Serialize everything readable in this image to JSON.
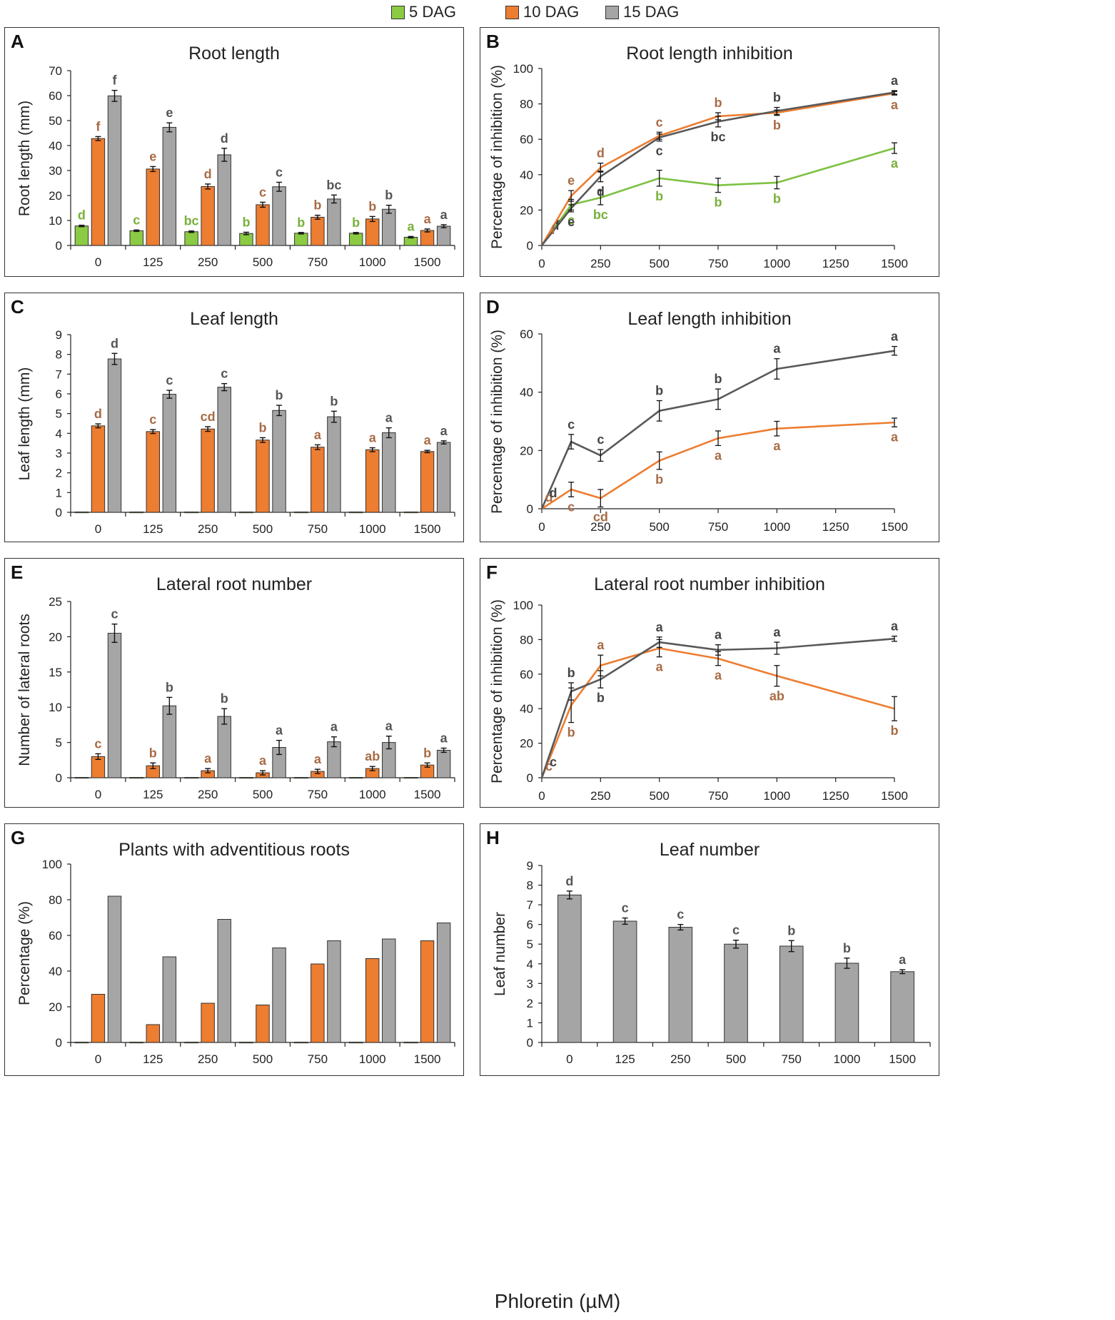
{
  "legend": [
    {
      "label": "5 DAG",
      "color": "#8BCB43"
    },
    {
      "label": "10 DAG",
      "color": "#ED7D31"
    },
    {
      "label": "15 DAG",
      "color": "#A5A5A5"
    }
  ],
  "x_axis_label": "Phloretin (µM)",
  "chart_data": [
    {
      "id": "A",
      "type": "bar",
      "title": "Root length",
      "ylabel": "Root length (mm)",
      "ylim": [
        0,
        70
      ],
      "yticks": [
        0,
        10,
        20,
        30,
        40,
        50,
        60,
        70
      ],
      "categories": [
        "0",
        "125",
        "250",
        "500",
        "750",
        "1000",
        "1500"
      ],
      "series": [
        {
          "name": "5 DAG",
          "color": "#8BCB43",
          "values": [
            7.8,
            5.9,
            5.5,
            4.8,
            4.9,
            4.9,
            3.3
          ],
          "errors": [
            0.3,
            0.3,
            0.3,
            0.5,
            0.3,
            0.3,
            0.3
          ],
          "letters": [
            "d",
            "c",
            "bc",
            "b",
            "b",
            "b",
            "a"
          ],
          "letter_color": "#78B13A"
        },
        {
          "name": "10 DAG",
          "color": "#ED7D31",
          "values": [
            42.8,
            30.6,
            23.6,
            16.3,
            11.3,
            10.6,
            6.0
          ],
          "errors": [
            0.8,
            1.0,
            1.0,
            1.0,
            0.8,
            1.0,
            0.6
          ],
          "letters": [
            "f",
            "e",
            "d",
            "c",
            "b",
            "b",
            "a"
          ],
          "letter_color": "#A86B45"
        },
        {
          "name": "15 DAG",
          "color": "#A5A5A5",
          "values": [
            59.9,
            47.3,
            36.3,
            23.5,
            18.6,
            14.5,
            7.7
          ],
          "errors": [
            2.2,
            1.8,
            2.6,
            1.8,
            1.6,
            1.6,
            0.6
          ],
          "letters": [
            "f",
            "e",
            "d",
            "c",
            "bc",
            "b",
            "a"
          ],
          "letter_color": "#555555"
        }
      ]
    },
    {
      "id": "B",
      "type": "line",
      "title": "Root length inhibition",
      "ylabel": "Percentage of inhibition (%)",
      "ylim": [
        0,
        100
      ],
      "yticks": [
        0,
        20,
        40,
        60,
        80,
        100
      ],
      "x": [
        0,
        125,
        250,
        500,
        750,
        1000,
        1500
      ],
      "xlim": [
        0,
        1500
      ],
      "xticks": [
        0,
        250,
        500,
        750,
        1000,
        1250,
        1500
      ],
      "series": [
        {
          "name": "5 DAG",
          "color": "#7DC142",
          "values": [
            0,
            23,
            27,
            38,
            34,
            35.5,
            55
          ],
          "errors": [
            0,
            3,
            4,
            4.5,
            4,
            3.5,
            3
          ],
          "letters": [
            "",
            "c",
            "bc",
            "b",
            "b",
            "b",
            "a"
          ],
          "letter_color": "#78B13A"
        },
        {
          "name": "10 DAG",
          "color": "#ED7D31",
          "values": [
            0,
            28,
            44,
            62,
            73,
            75,
            86
          ],
          "errors": [
            0,
            3,
            2.5,
            2,
            2,
            1.5,
            1
          ],
          "letters": [
            "f",
            "e",
            "d",
            "c",
            "b",
            "b",
            "a"
          ],
          "letter_color": "#A86B45"
        },
        {
          "name": "15 DAG",
          "color": "#595959",
          "values": [
            0,
            21,
            39,
            61,
            70,
            76,
            86.5
          ],
          "errors": [
            0,
            2,
            3,
            2,
            3,
            2,
            1
          ],
          "letters": [
            "f",
            "e",
            "d",
            "c",
            "bc",
            "b",
            "a"
          ],
          "letter_color": "#444444"
        }
      ]
    },
    {
      "id": "C",
      "type": "bar",
      "title": "Leaf length",
      "ylabel": "Leaf  length (mm)",
      "ylim": [
        0,
        9
      ],
      "yticks": [
        0,
        1,
        2,
        3,
        4,
        5,
        6,
        7,
        8,
        9
      ],
      "categories": [
        "0",
        "125",
        "250",
        "500",
        "750",
        "1000",
        "1500"
      ],
      "series": [
        {
          "name": "5 DAG",
          "color": "#8BCB43",
          "values": [
            0.02,
            0.02,
            0.02,
            0.02,
            0.02,
            0.02,
            0.02
          ],
          "errors": [
            0,
            0,
            0,
            0,
            0,
            0,
            0
          ],
          "letters": [
            "",
            "",
            "",
            "",
            "",
            "",
            ""
          ],
          "letter_color": "#78B13A"
        },
        {
          "name": "10 DAG",
          "color": "#ED7D31",
          "values": [
            4.38,
            4.09,
            4.22,
            3.66,
            3.3,
            3.17,
            3.08
          ],
          "errors": [
            0.1,
            0.1,
            0.12,
            0.12,
            0.12,
            0.1,
            0.06
          ],
          "letters": [
            "d",
            "c",
            "cd",
            "b",
            "a",
            "a",
            "a"
          ],
          "letter_color": "#A86B45"
        },
        {
          "name": "15 DAG",
          "color": "#A5A5A5",
          "values": [
            7.77,
            5.98,
            6.34,
            5.16,
            4.84,
            4.03,
            3.54
          ],
          "errors": [
            0.28,
            0.2,
            0.18,
            0.26,
            0.28,
            0.25,
            0.08
          ],
          "letters": [
            "d",
            "c",
            "c",
            "b",
            "b",
            "a",
            "a"
          ],
          "letter_color": "#555555"
        }
      ]
    },
    {
      "id": "D",
      "type": "line",
      "title": "Leaf length inhibition",
      "ylabel": "Percentage of inhibition (%)",
      "ylim": [
        0,
        60
      ],
      "yticks": [
        0,
        20,
        40,
        60
      ],
      "x": [
        0,
        125,
        250,
        500,
        750,
        1000,
        1500
      ],
      "xlim": [
        0,
        1500
      ],
      "xticks": [
        0,
        250,
        500,
        750,
        1000,
        1250,
        1500
      ],
      "series": [
        {
          "name": "10 DAG",
          "color": "#ED7D31",
          "values": [
            0,
            6.6,
            3.6,
            16.5,
            24.2,
            27.5,
            29.6
          ],
          "errors": [
            0,
            2.5,
            3,
            3,
            2.5,
            2.5,
            1.5
          ],
          "letters": [
            "d",
            "c",
            "cd",
            "b",
            "a",
            "a",
            "a"
          ],
          "letter_color": "#A86B45"
        },
        {
          "name": "15 DAG",
          "color": "#595959",
          "values": [
            0,
            23,
            18.3,
            33.6,
            37.6,
            48,
            54.2
          ],
          "errors": [
            0,
            2.5,
            2,
            3.5,
            3.5,
            3.5,
            1.5
          ],
          "letters": [
            "d",
            "c",
            "c",
            "b",
            "b",
            "a",
            "a"
          ],
          "letter_color": "#444444"
        }
      ]
    },
    {
      "id": "E",
      "type": "bar",
      "title": "Lateral root number",
      "ylabel": "Number of lateral roots",
      "ylim": [
        0,
        25
      ],
      "yticks": [
        0,
        5,
        10,
        15,
        20,
        25
      ],
      "categories": [
        "0",
        "125",
        "250",
        "500",
        "750",
        "1000",
        "1500"
      ],
      "series": [
        {
          "name": "5 DAG",
          "color": "#8BCB43",
          "values": [
            0.05,
            0.05,
            0.05,
            0.05,
            0.05,
            0.05,
            0.05
          ],
          "errors": [
            0,
            0,
            0,
            0,
            0,
            0,
            0
          ],
          "letters": [
            "",
            "",
            "",
            "",
            "",
            "",
            ""
          ],
          "letter_color": "#78B13A"
        },
        {
          "name": "10 DAG",
          "color": "#ED7D31",
          "values": [
            3.0,
            1.7,
            1.0,
            0.7,
            0.9,
            1.3,
            1.8
          ],
          "errors": [
            0.4,
            0.4,
            0.3,
            0.3,
            0.3,
            0.3,
            0.3
          ],
          "letters": [
            "c",
            "b",
            "a",
            "a",
            "a",
            "ab",
            "b"
          ],
          "letter_color": "#A86B45"
        },
        {
          "name": "15 DAG",
          "color": "#A5A5A5",
          "values": [
            20.5,
            10.2,
            8.7,
            4.3,
            5.1,
            5.0,
            3.9
          ],
          "errors": [
            1.3,
            1.2,
            1.1,
            1.0,
            0.7,
            0.9,
            0.3
          ],
          "letters": [
            "c",
            "b",
            "b",
            "a",
            "a",
            "a",
            "a"
          ],
          "letter_color": "#555555"
        }
      ]
    },
    {
      "id": "F",
      "type": "line",
      "title": "Lateral root number inhibition",
      "ylabel": "Percentage of inhibition (%)",
      "ylim": [
        0,
        100
      ],
      "yticks": [
        0,
        20,
        40,
        60,
        80,
        100
      ],
      "x": [
        0,
        125,
        250,
        500,
        750,
        1000,
        1500
      ],
      "xlim": [
        0,
        1500
      ],
      "xticks": [
        0,
        250,
        500,
        750,
        1000,
        1250,
        1500
      ],
      "series": [
        {
          "name": "10 DAG",
          "color": "#ED7D31",
          "values": [
            0,
            42,
            65,
            75,
            69,
            59,
            40
          ],
          "errors": [
            0,
            10,
            6,
            5,
            4,
            6,
            7
          ],
          "letters": [
            "c",
            "b",
            "a",
            "a",
            "a",
            "ab",
            "b"
          ],
          "letter_color": "#A86B45"
        },
        {
          "name": "15 DAG",
          "color": "#595959",
          "values": [
            0,
            50,
            57,
            78.5,
            74,
            75,
            80.5
          ],
          "errors": [
            0,
            5,
            5,
            3,
            3,
            3.5,
            1.5
          ],
          "letters": [
            "c",
            "b",
            "b",
            "a",
            "a",
            "a",
            "a"
          ],
          "letter_color": "#444444"
        }
      ]
    },
    {
      "id": "G",
      "type": "bar",
      "title": "Plants with adventitious roots",
      "ylabel": "Percentage (%)",
      "ylim": [
        0,
        100
      ],
      "yticks": [
        0,
        20,
        40,
        60,
        80,
        100
      ],
      "categories": [
        "0",
        "125",
        "250",
        "500",
        "750",
        "1000",
        "1500"
      ],
      "series": [
        {
          "name": "5 DAG",
          "color": "#8BCB43",
          "values": [
            0.2,
            0.2,
            0.2,
            0.2,
            0.2,
            0.2,
            0.2
          ],
          "errors": [
            0,
            0,
            0,
            0,
            0,
            0,
            0
          ],
          "letters": [
            "",
            "",
            "",
            "",
            "",
            "",
            ""
          ],
          "letter_color": "#78B13A"
        },
        {
          "name": "10 DAG",
          "color": "#ED7D31",
          "values": [
            27,
            10,
            22,
            21,
            44,
            47,
            57
          ],
          "errors": [
            0,
            0,
            0,
            0,
            0,
            0,
            0
          ],
          "letters": [
            "",
            "",
            "",
            "",
            "",
            "",
            ""
          ],
          "letter_color": "#A86B45"
        },
        {
          "name": "15 DAG",
          "color": "#A5A5A5",
          "values": [
            82,
            48,
            69,
            53,
            57,
            58,
            67
          ],
          "errors": [
            0,
            0,
            0,
            0,
            0,
            0,
            0
          ],
          "letters": [
            "",
            "",
            "",
            "",
            "",
            "",
            ""
          ],
          "letter_color": "#555555"
        }
      ]
    },
    {
      "id": "H",
      "type": "bar",
      "title": "Leaf number",
      "ylabel": "Leaf number",
      "ylim": [
        0,
        9
      ],
      "yticks": [
        0,
        1,
        2,
        3,
        4,
        5,
        6,
        7,
        8,
        9
      ],
      "categories": [
        "0",
        "125",
        "250",
        "500",
        "750",
        "1000",
        "1500"
      ],
      "series": [
        {
          "name": "15 DAG",
          "color": "#A5A5A5",
          "values": [
            7.5,
            6.17,
            5.86,
            5.0,
            4.9,
            4.03,
            3.6
          ],
          "errors": [
            0.2,
            0.16,
            0.14,
            0.2,
            0.28,
            0.26,
            0.1
          ],
          "letters": [
            "d",
            "c",
            "c",
            "c",
            "b",
            "b",
            "a"
          ],
          "letter_color": "#555555"
        }
      ]
    }
  ]
}
